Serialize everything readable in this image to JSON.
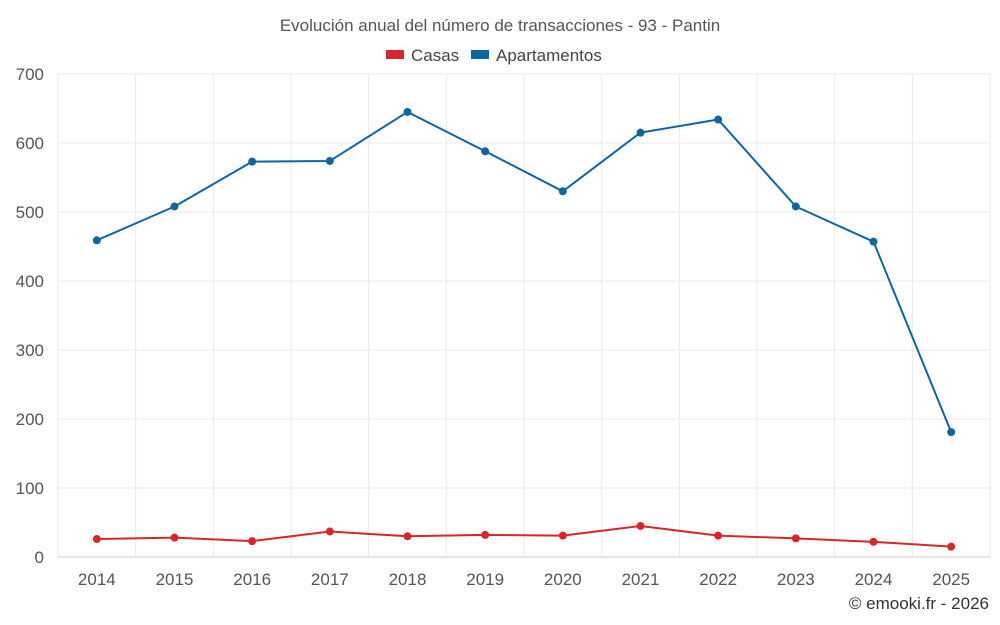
{
  "chart_data": {
    "type": "line",
    "title": "Evolución anual del número de transacciones - 93 - Pantin",
    "categories": [
      "2014",
      "2015",
      "2016",
      "2017",
      "2018",
      "2019",
      "2020",
      "2021",
      "2022",
      "2023",
      "2024",
      "2025"
    ],
    "series": [
      {
        "name": "Casas",
        "color": "#d62728",
        "values": [
          26,
          28,
          23,
          37,
          30,
          32,
          31,
          45,
          31,
          27,
          22,
          15
        ]
      },
      {
        "name": "Apartamentos",
        "color": "#1065a0",
        "values": [
          459,
          508,
          573,
          574,
          645,
          588,
          530,
          615,
          634,
          508,
          457,
          181
        ]
      }
    ],
    "xlabel": "",
    "ylabel": "",
    "ylim": [
      0,
      700
    ],
    "yticks": [
      0,
      100,
      200,
      300,
      400,
      500,
      600,
      700
    ],
    "grid": true,
    "legend": "top-center"
  },
  "footer": {
    "credit": "© emooki.fr - 2026"
  }
}
